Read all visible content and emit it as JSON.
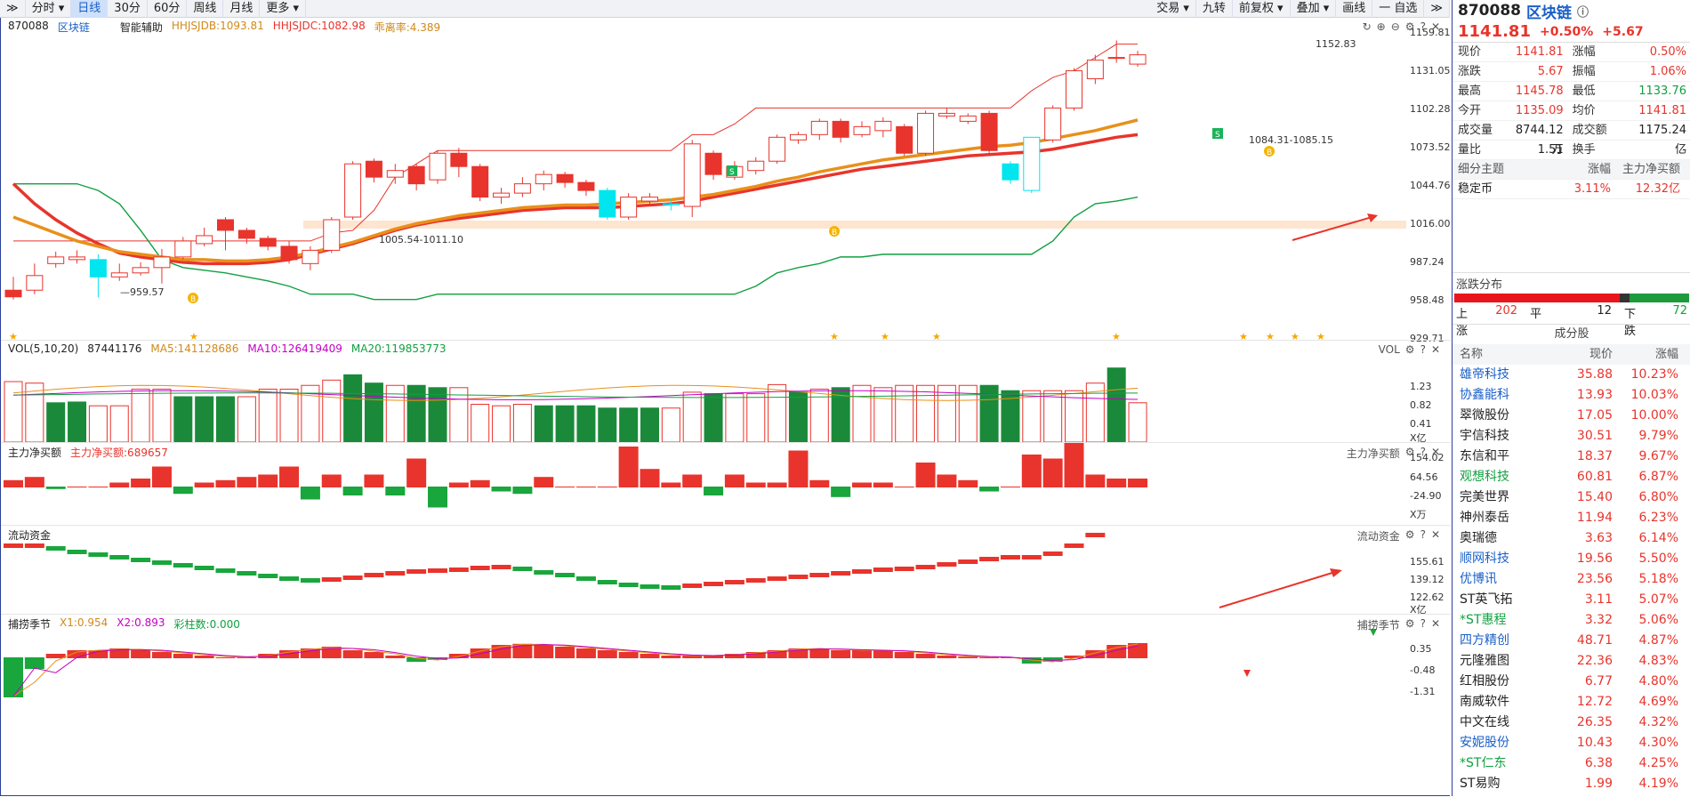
{
  "toolbar": {
    "expand": "≫",
    "tabs": [
      "分时 ▾",
      "日线",
      "30分",
      "60分",
      "周线",
      "月线",
      "更多 ▾"
    ],
    "right": [
      "交易 ▾",
      "九转",
      "前复权 ▾",
      "叠加 ▾",
      "画线",
      "一 自选",
      "≫"
    ]
  },
  "chart_header": {
    "code": "870088",
    "name": "区块链",
    "aux": "智能辅助",
    "jdb": "HHJSJDB:1093.81",
    "jdc": "HHJSJDC:1082.98",
    "dev": "乖离率:4.389"
  },
  "price_axis": [
    "1159.81",
    "1131.05",
    "1102.28",
    "1073.52",
    "1044.76",
    "1016.00",
    "987.24",
    "958.48",
    "929.71"
  ],
  "price_labels": {
    "high": "1152.83",
    "low": "959.57",
    "range1": "1005.54-1011.10",
    "range2": "1084.31-1085.15",
    "b": "B",
    "s": "S"
  },
  "vol_header": {
    "name": "VOL(5,10,20)",
    "val": "87441176",
    "ma5": "MA5:141128686",
    "ma10": "MA10:126419409",
    "ma20": "MA20:119853773",
    "right": "VOL"
  },
  "vol_axis": [
    "1.23",
    "0.82",
    "0.41",
    "X亿"
  ],
  "net_header": {
    "name": "主力净买额",
    "val": "主力净买额:689657",
    "right": "主力净买额"
  },
  "net_axis": [
    "154.02",
    "64.56",
    "-24.90",
    "X万"
  ],
  "flow_header": {
    "name": "流动资金",
    "right": "流动资金"
  },
  "flow_axis": [
    "155.61",
    "139.12",
    "122.62",
    "X亿"
  ],
  "season_header": {
    "name": "捕捞季节",
    "x1": "X1:0.954",
    "x2": "X2:0.893",
    "bars": "彩柱数:0.000",
    "right": "捕捞季节"
  },
  "season_axis": [
    "0.35",
    "-0.48",
    "-1.31"
  ],
  "quote": {
    "code": "870088",
    "name": "区块链",
    "price": "1141.81",
    "pct": "+0.50%",
    "chg": "+5.67"
  },
  "stats": [
    [
      "现价",
      "1141.81",
      "涨幅",
      "0.50%"
    ],
    [
      "涨跌",
      "5.67",
      "振幅",
      "1.06%"
    ],
    [
      "最高",
      "1145.78",
      "最低",
      "1133.76"
    ],
    [
      "今开",
      "1135.09",
      "均价",
      "1141.81"
    ],
    [
      "成交量",
      "8744.12万",
      "成交额",
      "1175.24亿"
    ],
    [
      "量比",
      "1.51",
      "换手",
      "-"
    ]
  ],
  "theme": {
    "h1": "细分主题",
    "h2": "涨幅",
    "h3": "主力净买额",
    "name": "稳定币",
    "pct": "3.11%",
    "net": "12.32亿"
  },
  "dist": {
    "title": "涨跌分布",
    "up_l": "上涨",
    "up": "202",
    "flat_l": "平",
    "flat": "12",
    "down_l": "下跌",
    "down": "72"
  },
  "cons": {
    "title": "成分股",
    "h": [
      "名称",
      "现价",
      "涨幅"
    ],
    "rows": [
      [
        "雄帝科技",
        "35.88",
        "10.23%"
      ],
      [
        "协鑫能科",
        "13.93",
        "10.03%"
      ],
      [
        "翠微股份",
        "17.05",
        "10.00%"
      ],
      [
        "宇信科技",
        "30.51",
        "9.79%"
      ],
      [
        "东信和平",
        "18.37",
        "9.67%"
      ],
      [
        "观想科技",
        "60.81",
        "6.87%"
      ],
      [
        "完美世界",
        "15.40",
        "6.80%"
      ],
      [
        "神州泰岳",
        "11.94",
        "6.23%"
      ],
      [
        "奥瑞德",
        "3.63",
        "6.14%"
      ],
      [
        "顺网科技",
        "19.56",
        "5.50%"
      ],
      [
        "优博讯",
        "23.56",
        "5.18%"
      ],
      [
        "ST英飞拓",
        "3.11",
        "5.07%"
      ],
      [
        "*ST惠程",
        "3.32",
        "5.06%"
      ],
      [
        "四方精创",
        "48.71",
        "4.87%"
      ],
      [
        "元隆雅图",
        "22.36",
        "4.83%"
      ],
      [
        "红相股份",
        "6.77",
        "4.80%"
      ],
      [
        "南威软件",
        "12.72",
        "4.69%"
      ],
      [
        "中文在线",
        "26.35",
        "4.32%"
      ],
      [
        "安妮股份",
        "10.43",
        "4.30%"
      ],
      [
        "*ST仁东",
        "6.38",
        "4.25%"
      ],
      [
        "ST易购",
        "1.99",
        "4.19%"
      ]
    ]
  },
  "colors": {
    "up": "#e8342c",
    "down": "#1a8a3a",
    "cyan": "#00e5ee"
  }
}
